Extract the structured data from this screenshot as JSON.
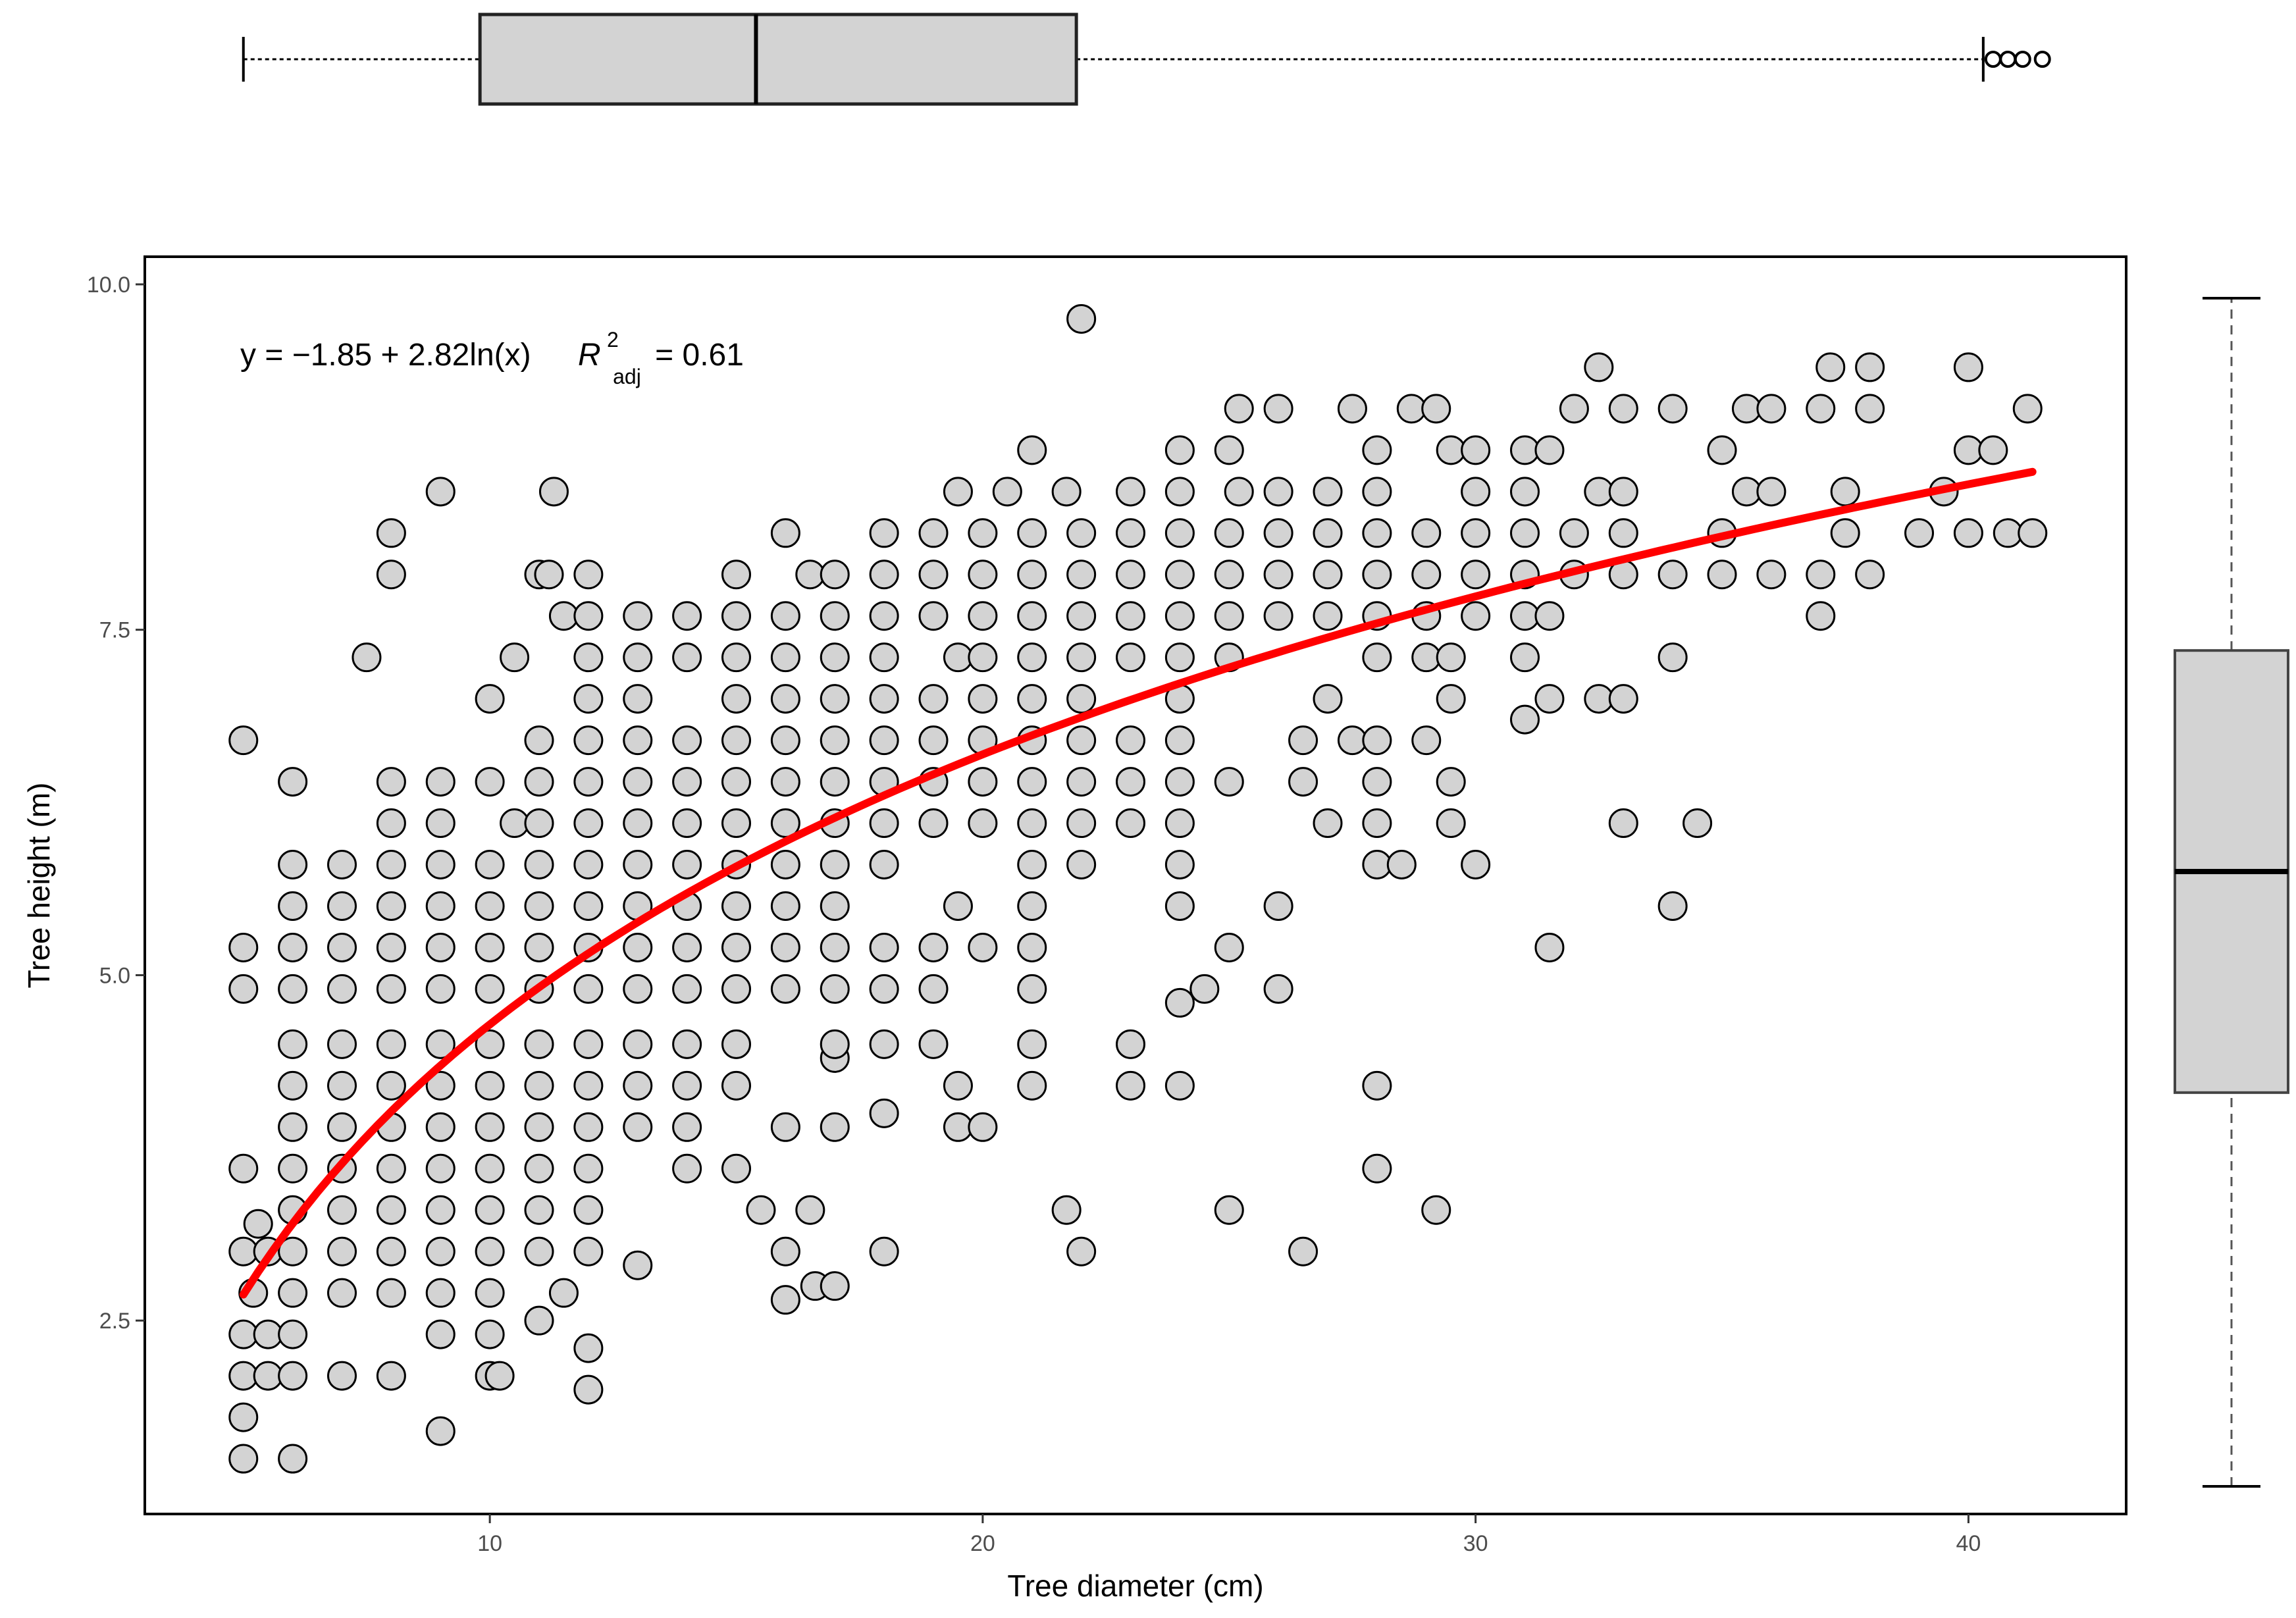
{
  "chart_data": {
    "type": "scatter",
    "xlabel": "Tree diameter (cm)",
    "ylabel": "Tree height (m)",
    "xlim": [
      3.0,
      43.2
    ],
    "ylim": [
      1.1,
      10.2
    ],
    "xticks": [
      "10",
      "20",
      "30",
      "40"
    ],
    "yticks": [
      "2.5",
      "5.0",
      "7.5",
      "10.0"
    ],
    "grid": false,
    "legend": "none",
    "annotation": {
      "equation": "y = −1.85 + 2.82ln(x)",
      "r_symbol": "R",
      "r_sup": "2",
      "r_sub": "adj",
      "r_value": "= 0.61"
    },
    "fit": {
      "intercept": -1.85,
      "slope": 2.82,
      "x_from": 5,
      "x_to": 41.3,
      "color": "#ff0000"
    },
    "points_style": {
      "fill": "#d3d3d3",
      "stroke": "#000000"
    },
    "points": [
      [
        5,
        1.5
      ],
      [
        6,
        1.5
      ],
      [
        5,
        1.8
      ],
      [
        9,
        1.7
      ],
      [
        5,
        2.1
      ],
      [
        5.5,
        2.1
      ],
      [
        6,
        2.1
      ],
      [
        7,
        2.1
      ],
      [
        8,
        2.1
      ],
      [
        10,
        2.1
      ],
      [
        10.2,
        2.1
      ],
      [
        12,
        2.0
      ],
      [
        5,
        2.4
      ],
      [
        5.5,
        2.4
      ],
      [
        6,
        2.4
      ],
      [
        9,
        2.4
      ],
      [
        10,
        2.4
      ],
      [
        11,
        2.5
      ],
      [
        12,
        2.3
      ],
      [
        5.2,
        2.7
      ],
      [
        6,
        2.7
      ],
      [
        7,
        2.7
      ],
      [
        8,
        2.7
      ],
      [
        9,
        2.7
      ],
      [
        10,
        2.7
      ],
      [
        11.5,
        2.7
      ],
      [
        16,
        2.65
      ],
      [
        16.6,
        2.75
      ],
      [
        17,
        2.75
      ],
      [
        5,
        3.0
      ],
      [
        5.5,
        3.0
      ],
      [
        6,
        3.0
      ],
      [
        7,
        3.0
      ],
      [
        8,
        3.0
      ],
      [
        9,
        3.0
      ],
      [
        10,
        3.0
      ],
      [
        11,
        3.0
      ],
      [
        12,
        3.0
      ],
      [
        13,
        2.9
      ],
      [
        16,
        3.0
      ],
      [
        18,
        3.0
      ],
      [
        22,
        3.0
      ],
      [
        26.5,
        3.0
      ],
      [
        5.3,
        3.2
      ],
      [
        6,
        3.3
      ],
      [
        7,
        3.3
      ],
      [
        8,
        3.3
      ],
      [
        9,
        3.3
      ],
      [
        10,
        3.3
      ],
      [
        11,
        3.3
      ],
      [
        12,
        3.3
      ],
      [
        15.5,
        3.3
      ],
      [
        16.5,
        3.3
      ],
      [
        21.7,
        3.3
      ],
      [
        25,
        3.3
      ],
      [
        29.2,
        3.3
      ],
      [
        5,
        3.6
      ],
      [
        6,
        3.6
      ],
      [
        7,
        3.6
      ],
      [
        8,
        3.6
      ],
      [
        9,
        3.6
      ],
      [
        10,
        3.6
      ],
      [
        11,
        3.6
      ],
      [
        12,
        3.6
      ],
      [
        14,
        3.6
      ],
      [
        15,
        3.6
      ],
      [
        28,
        3.6
      ],
      [
        6,
        3.9
      ],
      [
        7,
        3.9
      ],
      [
        8,
        3.9
      ],
      [
        9,
        3.9
      ],
      [
        10,
        3.9
      ],
      [
        11,
        3.9
      ],
      [
        12,
        3.9
      ],
      [
        13,
        3.9
      ],
      [
        14,
        3.9
      ],
      [
        16,
        3.9
      ],
      [
        17,
        3.9
      ],
      [
        18,
        4.0
      ],
      [
        19.5,
        3.9
      ],
      [
        20,
        3.9
      ],
      [
        6,
        4.2
      ],
      [
        7,
        4.2
      ],
      [
        8,
        4.2
      ],
      [
        9,
        4.2
      ],
      [
        10,
        4.2
      ],
      [
        11,
        4.2
      ],
      [
        12,
        4.2
      ],
      [
        13,
        4.2
      ],
      [
        14,
        4.2
      ],
      [
        15,
        4.2
      ],
      [
        17,
        4.4
      ],
      [
        19.5,
        4.2
      ],
      [
        21,
        4.2
      ],
      [
        23,
        4.2
      ],
      [
        24,
        4.2
      ],
      [
        28,
        4.2
      ],
      [
        6,
        4.5
      ],
      [
        7,
        4.5
      ],
      [
        8,
        4.5
      ],
      [
        9,
        4.5
      ],
      [
        10,
        4.5
      ],
      [
        11,
        4.5
      ],
      [
        12,
        4.5
      ],
      [
        13,
        4.5
      ],
      [
        14,
        4.5
      ],
      [
        15,
        4.5
      ],
      [
        17,
        4.5
      ],
      [
        18,
        4.5
      ],
      [
        19,
        4.5
      ],
      [
        21,
        4.5
      ],
      [
        23,
        4.5
      ],
      [
        24,
        4.8
      ],
      [
        24.5,
        4.9
      ],
      [
        5,
        4.9
      ],
      [
        6,
        4.9
      ],
      [
        7,
        4.9
      ],
      [
        8,
        4.9
      ],
      [
        9,
        4.9
      ],
      [
        10,
        4.9
      ],
      [
        11,
        4.9
      ],
      [
        12,
        4.9
      ],
      [
        13,
        4.9
      ],
      [
        14,
        4.9
      ],
      [
        15,
        4.9
      ],
      [
        16,
        4.9
      ],
      [
        17,
        4.9
      ],
      [
        18,
        4.9
      ],
      [
        19,
        4.9
      ],
      [
        21,
        4.9
      ],
      [
        26,
        4.9
      ],
      [
        5,
        5.2
      ],
      [
        6,
        5.2
      ],
      [
        7,
        5.2
      ],
      [
        8,
        5.2
      ],
      [
        9,
        5.2
      ],
      [
        10,
        5.2
      ],
      [
        11,
        5.2
      ],
      [
        12,
        5.2
      ],
      [
        13,
        5.2
      ],
      [
        14,
        5.2
      ],
      [
        15,
        5.2
      ],
      [
        16,
        5.2
      ],
      [
        17,
        5.2
      ],
      [
        18,
        5.2
      ],
      [
        19,
        5.2
      ],
      [
        20,
        5.2
      ],
      [
        21,
        5.2
      ],
      [
        25,
        5.2
      ],
      [
        31.5,
        5.2
      ],
      [
        6,
        5.5
      ],
      [
        7,
        5.5
      ],
      [
        8,
        5.5
      ],
      [
        9,
        5.5
      ],
      [
        10,
        5.5
      ],
      [
        11,
        5.5
      ],
      [
        12,
        5.5
      ],
      [
        13,
        5.5
      ],
      [
        14,
        5.5
      ],
      [
        15,
        5.5
      ],
      [
        16,
        5.5
      ],
      [
        17,
        5.5
      ],
      [
        19.5,
        5.5
      ],
      [
        21,
        5.5
      ],
      [
        24,
        5.5
      ],
      [
        26,
        5.5
      ],
      [
        34,
        5.5
      ],
      [
        6,
        5.8
      ],
      [
        7,
        5.8
      ],
      [
        8,
        5.8
      ],
      [
        9,
        5.8
      ],
      [
        10,
        5.8
      ],
      [
        11,
        5.8
      ],
      [
        12,
        5.8
      ],
      [
        13,
        5.8
      ],
      [
        14,
        5.8
      ],
      [
        15,
        5.8
      ],
      [
        16,
        5.8
      ],
      [
        17,
        5.8
      ],
      [
        18,
        5.8
      ],
      [
        21,
        5.8
      ],
      [
        22,
        5.8
      ],
      [
        24,
        5.8
      ],
      [
        28,
        5.8
      ],
      [
        28.5,
        5.8
      ],
      [
        30,
        5.8
      ],
      [
        8,
        6.1
      ],
      [
        9,
        6.1
      ],
      [
        10.5,
        6.1
      ],
      [
        11,
        6.1
      ],
      [
        12,
        6.1
      ],
      [
        13,
        6.1
      ],
      [
        14,
        6.1
      ],
      [
        15,
        6.1
      ],
      [
        16,
        6.1
      ],
      [
        17,
        6.1
      ],
      [
        18,
        6.1
      ],
      [
        19,
        6.1
      ],
      [
        20,
        6.1
      ],
      [
        21,
        6.1
      ],
      [
        22,
        6.1
      ],
      [
        23,
        6.1
      ],
      [
        24,
        6.1
      ],
      [
        27,
        6.1
      ],
      [
        28,
        6.1
      ],
      [
        29.5,
        6.1
      ],
      [
        33,
        6.1
      ],
      [
        34.5,
        6.1
      ],
      [
        6,
        6.4
      ],
      [
        8,
        6.4
      ],
      [
        9,
        6.4
      ],
      [
        10,
        6.4
      ],
      [
        11,
        6.4
      ],
      [
        12,
        6.4
      ],
      [
        13,
        6.4
      ],
      [
        14,
        6.4
      ],
      [
        15,
        6.4
      ],
      [
        16,
        6.4
      ],
      [
        17,
        6.4
      ],
      [
        18,
        6.4
      ],
      [
        19,
        6.4
      ],
      [
        20,
        6.4
      ],
      [
        21,
        6.4
      ],
      [
        22,
        6.4
      ],
      [
        23,
        6.4
      ],
      [
        24,
        6.4
      ],
      [
        25,
        6.4
      ],
      [
        26.5,
        6.4
      ],
      [
        28,
        6.4
      ],
      [
        29.5,
        6.4
      ],
      [
        5,
        6.7
      ],
      [
        11,
        6.7
      ],
      [
        12,
        6.7
      ],
      [
        13,
        6.7
      ],
      [
        14,
        6.7
      ],
      [
        15,
        6.7
      ],
      [
        16,
        6.7
      ],
      [
        17,
        6.7
      ],
      [
        18,
        6.7
      ],
      [
        19,
        6.7
      ],
      [
        20,
        6.7
      ],
      [
        21,
        6.7
      ],
      [
        22,
        6.7
      ],
      [
        23,
        6.7
      ],
      [
        24,
        6.7
      ],
      [
        26.5,
        6.7
      ],
      [
        27.5,
        6.7
      ],
      [
        28,
        6.7
      ],
      [
        29,
        6.7
      ],
      [
        31,
        6.85
      ],
      [
        10,
        7.0
      ],
      [
        12,
        7.0
      ],
      [
        13,
        7.0
      ],
      [
        15,
        7.0
      ],
      [
        16,
        7.0
      ],
      [
        17,
        7.0
      ],
      [
        18,
        7.0
      ],
      [
        19,
        7.0
      ],
      [
        20,
        7.0
      ],
      [
        21,
        7.0
      ],
      [
        22,
        7.0
      ],
      [
        24,
        7.0
      ],
      [
        27,
        7.0
      ],
      [
        29.5,
        7.0
      ],
      [
        31.5,
        7.0
      ],
      [
        32.5,
        7.0
      ],
      [
        33,
        7.0
      ],
      [
        7.5,
        7.3
      ],
      [
        10.5,
        7.3
      ],
      [
        12,
        7.3
      ],
      [
        13,
        7.3
      ],
      [
        14,
        7.3
      ],
      [
        15,
        7.3
      ],
      [
        16,
        7.3
      ],
      [
        17,
        7.3
      ],
      [
        18,
        7.3
      ],
      [
        19.5,
        7.3
      ],
      [
        20,
        7.3
      ],
      [
        21,
        7.3
      ],
      [
        22,
        7.3
      ],
      [
        23,
        7.3
      ],
      [
        24,
        7.3
      ],
      [
        25,
        7.3
      ],
      [
        28,
        7.3
      ],
      [
        29,
        7.3
      ],
      [
        29.5,
        7.3
      ],
      [
        31,
        7.3
      ],
      [
        34,
        7.3
      ],
      [
        11.5,
        7.6
      ],
      [
        12,
        7.6
      ],
      [
        13,
        7.6
      ],
      [
        14,
        7.6
      ],
      [
        15,
        7.6
      ],
      [
        16,
        7.6
      ],
      [
        17,
        7.6
      ],
      [
        18,
        7.6
      ],
      [
        19,
        7.6
      ],
      [
        20,
        7.6
      ],
      [
        21,
        7.6
      ],
      [
        22,
        7.6
      ],
      [
        23,
        7.6
      ],
      [
        24,
        7.6
      ],
      [
        25,
        7.6
      ],
      [
        26,
        7.6
      ],
      [
        27,
        7.6
      ],
      [
        28,
        7.6
      ],
      [
        29,
        7.6
      ],
      [
        30,
        7.6
      ],
      [
        31,
        7.6
      ],
      [
        31.5,
        7.6
      ],
      [
        37,
        7.6
      ],
      [
        8,
        7.9
      ],
      [
        11,
        7.9
      ],
      [
        11.2,
        7.9
      ],
      [
        12,
        7.9
      ],
      [
        15,
        7.9
      ],
      [
        16.5,
        7.9
      ],
      [
        17,
        7.9
      ],
      [
        18,
        7.9
      ],
      [
        19,
        7.9
      ],
      [
        20,
        7.9
      ],
      [
        21,
        7.9
      ],
      [
        22,
        7.9
      ],
      [
        23,
        7.9
      ],
      [
        24,
        7.9
      ],
      [
        25,
        7.9
      ],
      [
        26,
        7.9
      ],
      [
        27,
        7.9
      ],
      [
        28,
        7.9
      ],
      [
        29,
        7.9
      ],
      [
        30,
        7.9
      ],
      [
        31,
        7.9
      ],
      [
        32,
        7.9
      ],
      [
        33,
        7.9
      ],
      [
        34,
        7.9
      ],
      [
        35,
        7.9
      ],
      [
        36,
        7.9
      ],
      [
        37,
        7.9
      ],
      [
        38,
        7.9
      ],
      [
        8,
        8.2
      ],
      [
        16,
        8.2
      ],
      [
        18,
        8.2
      ],
      [
        19,
        8.2
      ],
      [
        20,
        8.2
      ],
      [
        21,
        8.2
      ],
      [
        22,
        8.2
      ],
      [
        23,
        8.2
      ],
      [
        24,
        8.2
      ],
      [
        25,
        8.2
      ],
      [
        26,
        8.2
      ],
      [
        27,
        8.2
      ],
      [
        28,
        8.2
      ],
      [
        29,
        8.2
      ],
      [
        30,
        8.2
      ],
      [
        31,
        8.2
      ],
      [
        32,
        8.2
      ],
      [
        33,
        8.2
      ],
      [
        35,
        8.2
      ],
      [
        37.5,
        8.2
      ],
      [
        39,
        8.2
      ],
      [
        40,
        8.2
      ],
      [
        40.8,
        8.2
      ],
      [
        41.3,
        8.2
      ],
      [
        9,
        8.5
      ],
      [
        11.3,
        8.5
      ],
      [
        19.5,
        8.5
      ],
      [
        20.5,
        8.5
      ],
      [
        21.7,
        8.5
      ],
      [
        23,
        8.5
      ],
      [
        24,
        8.5
      ],
      [
        25.2,
        8.5
      ],
      [
        26,
        8.5
      ],
      [
        27,
        8.5
      ],
      [
        28,
        8.5
      ],
      [
        30,
        8.5
      ],
      [
        31,
        8.5
      ],
      [
        32.5,
        8.5
      ],
      [
        33,
        8.5
      ],
      [
        35.5,
        8.5
      ],
      [
        36,
        8.5
      ],
      [
        37.5,
        8.5
      ],
      [
        39.5,
        8.5
      ],
      [
        21,
        8.8
      ],
      [
        24,
        8.8
      ],
      [
        25,
        8.8
      ],
      [
        28,
        8.8
      ],
      [
        29.5,
        8.8
      ],
      [
        30,
        8.8
      ],
      [
        31,
        8.8
      ],
      [
        31.5,
        8.8
      ],
      [
        35,
        8.8
      ],
      [
        40,
        8.8
      ],
      [
        40.5,
        8.8
      ],
      [
        25.2,
        9.1
      ],
      [
        26,
        9.1
      ],
      [
        27.5,
        9.1
      ],
      [
        28.7,
        9.1
      ],
      [
        29.2,
        9.1
      ],
      [
        32,
        9.1
      ],
      [
        33,
        9.1
      ],
      [
        34,
        9.1
      ],
      [
        35.5,
        9.1
      ],
      [
        36,
        9.1
      ],
      [
        37,
        9.1
      ],
      [
        38,
        9.1
      ],
      [
        41.2,
        9.1
      ],
      [
        32.5,
        9.4
      ],
      [
        37.2,
        9.4
      ],
      [
        38,
        9.4
      ],
      [
        40,
        9.4
      ],
      [
        22,
        9.75
      ]
    ]
  },
  "top_boxplot": {
    "variable": "Tree diameter (cm)",
    "whisker_low": 5,
    "q1": 9.8,
    "median": 15.4,
    "q3": 21.9,
    "whisker_high": 40.3,
    "outliers": [
      40.5,
      40.8,
      41.1,
      41.5
    ],
    "fill": "#d3d3d3"
  },
  "right_boxplot": {
    "variable": "Tree height (m)",
    "whisker_low": 1.3,
    "q1": 4.15,
    "median": 5.75,
    "q3": 7.35,
    "whisker_high": 9.9,
    "fill": "#d3d3d3"
  }
}
